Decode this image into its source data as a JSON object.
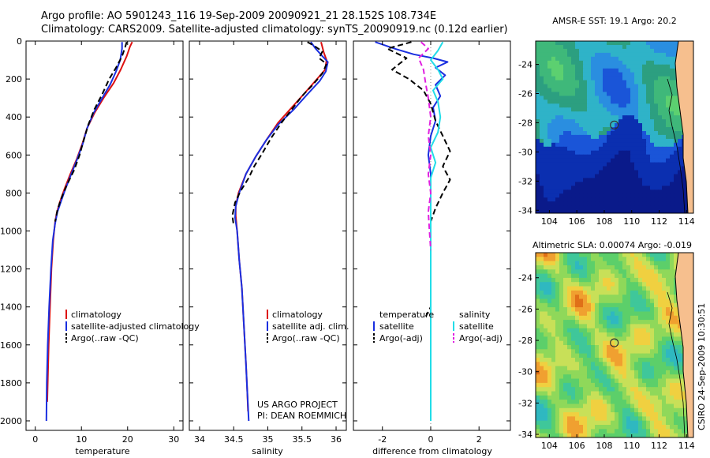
{
  "title": {
    "line1": "Argo profile: AO 5901243_116 19-Sep-2009 20090921_21 28.152S 108.734E",
    "line2": "Climatology: CARS2009. Satellite-adjusted climatology: synTS_20090919.nc (0.12d earlier)"
  },
  "side_label": "CSIRO 24-Sep-2009 10:30:51",
  "colors": {
    "red": "#dd1111",
    "blue": "#1a2fe0",
    "black": "#000000",
    "cyan": "#22dde8",
    "magenta": "#e020e0",
    "land": "#f6bf8e",
    "marker_dot": "#333333"
  },
  "chart_data": [
    {
      "type": "line",
      "panel": "temperature",
      "xlabel": "temperature",
      "xlim": [
        -2,
        32
      ],
      "ylim": [
        2050,
        0
      ],
      "xticks": [
        "0",
        "10",
        "20",
        "30"
      ],
      "yticks": [
        "0",
        "200",
        "400",
        "600",
        "800",
        "1000",
        "1200",
        "1400",
        "1600",
        "1800",
        "2000"
      ],
      "legend": [
        "climatology",
        "satellite-adjusted climatology",
        "Argo(..raw -QC)"
      ],
      "series": [
        {
          "name": "climatology",
          "color": "red",
          "style": "solid",
          "points": [
            [
              21.0,
              5
            ],
            [
              20.5,
              30
            ],
            [
              19.8,
              80
            ],
            [
              18.5,
              150
            ],
            [
              17.0,
              220
            ],
            [
              14.8,
              300
            ],
            [
              12.8,
              380
            ],
            [
              11.2,
              460
            ],
            [
              10.2,
              540
            ],
            [
              9.0,
              620
            ],
            [
              7.6,
              700
            ],
            [
              6.3,
              780
            ],
            [
              5.3,
              850
            ],
            [
              4.7,
              900
            ],
            [
              4.3,
              950
            ],
            [
              3.9,
              1050
            ],
            [
              3.5,
              1200
            ],
            [
              3.2,
              1400
            ],
            [
              2.9,
              1600
            ],
            [
              2.7,
              1800
            ],
            [
              2.6,
              1900
            ]
          ]
        },
        {
          "name": "satellite-adjusted climatology",
          "color": "blue",
          "style": "solid",
          "points": [
            [
              18.8,
              5
            ],
            [
              18.8,
              40
            ],
            [
              18.4,
              100
            ],
            [
              17.5,
              160
            ],
            [
              16.2,
              230
            ],
            [
              14.5,
              300
            ],
            [
              12.6,
              380
            ],
            [
              11.2,
              460
            ],
            [
              10.3,
              540
            ],
            [
              9.1,
              620
            ],
            [
              7.8,
              700
            ],
            [
              6.5,
              780
            ],
            [
              5.5,
              850
            ],
            [
              4.8,
              900
            ],
            [
              4.3,
              960
            ],
            [
              3.8,
              1050
            ],
            [
              3.4,
              1200
            ],
            [
              3.0,
              1400
            ],
            [
              2.7,
              1600
            ],
            [
              2.5,
              1800
            ],
            [
              2.4,
              2000
            ]
          ]
        },
        {
          "name": "Argo(..raw -QC)",
          "color": "black",
          "style": "dash",
          "points": [
            [
              19.8,
              5
            ],
            [
              19.5,
              30
            ],
            [
              18.8,
              80
            ],
            [
              17.5,
              140
            ],
            [
              16.0,
              200
            ],
            [
              14.5,
              280
            ],
            [
              12.8,
              360
            ],
            [
              11.5,
              440
            ],
            [
              10.5,
              520
            ],
            [
              9.6,
              600
            ],
            [
              8.4,
              680
            ],
            [
              6.8,
              760
            ],
            [
              5.6,
              830
            ],
            [
              4.8,
              890
            ],
            [
              4.3,
              950
            ]
          ]
        }
      ]
    },
    {
      "type": "line",
      "panel": "salinity",
      "xlabel": "salinity",
      "xlim": [
        33.85,
        36.15
      ],
      "ylim": [
        2050,
        0
      ],
      "xticks": [
        "34",
        "34.5",
        "35",
        "35.5",
        "36"
      ],
      "legend": [
        "climatology",
        "satellite adj. clim.",
        "Argo(..raw -QC)"
      ],
      "annotation": [
        "US ARGO PROJECT",
        "PI: DEAN ROEMMICH"
      ],
      "series": [
        {
          "name": "climatology",
          "color": "red",
          "style": "solid",
          "points": [
            [
              35.78,
              5
            ],
            [
              35.82,
              60
            ],
            [
              35.86,
              100
            ],
            [
              35.84,
              150
            ],
            [
              35.72,
              200
            ],
            [
              35.55,
              270
            ],
            [
              35.35,
              350
            ],
            [
              35.15,
              430
            ],
            [
              34.98,
              520
            ],
            [
              34.82,
              610
            ],
            [
              34.68,
              700
            ],
            [
              34.57,
              800
            ],
            [
              34.53,
              870
            ],
            [
              34.53,
              920
            ],
            [
              34.55,
              1000
            ],
            [
              34.58,
              1150
            ],
            [
              34.62,
              1300
            ],
            [
              34.65,
              1500
            ],
            [
              34.68,
              1700
            ],
            [
              34.7,
              1850
            ],
            [
              34.71,
              1950
            ]
          ]
        },
        {
          "name": "satellite adj. clim.",
          "color": "blue",
          "style": "solid",
          "points": [
            [
              35.63,
              5
            ],
            [
              35.7,
              40
            ],
            [
              35.8,
              80
            ],
            [
              35.88,
              110
            ],
            [
              35.85,
              160
            ],
            [
              35.76,
              210
            ],
            [
              35.58,
              280
            ],
            [
              35.38,
              360
            ],
            [
              35.15,
              440
            ],
            [
              34.98,
              520
            ],
            [
              34.82,
              610
            ],
            [
              34.68,
              700
            ],
            [
              34.58,
              800
            ],
            [
              34.53,
              870
            ],
            [
              34.52,
              930
            ],
            [
              34.55,
              1000
            ],
            [
              34.58,
              1150
            ],
            [
              34.62,
              1300
            ],
            [
              34.65,
              1500
            ],
            [
              34.68,
              1700
            ],
            [
              34.7,
              1850
            ],
            [
              34.72,
              2000
            ]
          ]
        },
        {
          "name": "Argo(..raw -QC)",
          "color": "black",
          "style": "dash",
          "points": [
            [
              35.58,
              5
            ],
            [
              35.68,
              25
            ],
            [
              35.8,
              55
            ],
            [
              35.75,
              90
            ],
            [
              35.86,
              120
            ],
            [
              35.8,
              170
            ],
            [
              35.66,
              230
            ],
            [
              35.5,
              290
            ],
            [
              35.35,
              360
            ],
            [
              35.2,
              430
            ],
            [
              35.05,
              510
            ],
            [
              34.92,
              590
            ],
            [
              34.8,
              660
            ],
            [
              34.72,
              720
            ],
            [
              34.6,
              790
            ],
            [
              34.52,
              850
            ],
            [
              34.48,
              920
            ],
            [
              34.5,
              970
            ]
          ]
        }
      ]
    },
    {
      "type": "line",
      "panel": "difference",
      "xlabel": "difference from climatology",
      "xlim": [
        -3.2,
        3.3
      ],
      "ylim": [
        2050,
        0
      ],
      "xticks": [
        "-2",
        "0",
        "2"
      ],
      "legend": {
        "left_title": "temperature",
        "right_title": "salinity",
        "left": [
          "satellite",
          "Argo(-adj)"
        ],
        "right": [
          "satellite",
          "Argo(-adj)"
        ]
      },
      "series": [
        {
          "name": "satellite (temperature)",
          "color": "blue",
          "style": "solid",
          "points": [
            [
              -2.3,
              5
            ],
            [
              -1.5,
              40
            ],
            [
              -0.7,
              70
            ],
            [
              0.1,
              90
            ],
            [
              0.7,
              110
            ],
            [
              0.2,
              140
            ],
            [
              0.6,
              180
            ],
            [
              0.2,
              230
            ],
            [
              0.4,
              290
            ],
            [
              0.1,
              350
            ],
            [
              0.2,
              420
            ],
            [
              0.0,
              500
            ],
            [
              -0.1,
              600
            ],
            [
              0.0,
              700
            ],
            [
              0.0,
              800
            ],
            [
              0.0,
              1000
            ],
            [
              0.0,
              1400
            ],
            [
              0.0,
              1800
            ],
            [
              0.0,
              2000
            ]
          ]
        },
        {
          "name": "Argo(-adj) (temperature)",
          "color": "black",
          "style": "dash",
          "points": [
            [
              -0.8,
              5
            ],
            [
              -1.8,
              40
            ],
            [
              -1.0,
              90
            ],
            [
              -1.6,
              150
            ],
            [
              -0.9,
              200
            ],
            [
              -0.3,
              260
            ],
            [
              0.0,
              330
            ],
            [
              0.2,
              420
            ],
            [
              0.5,
              500
            ],
            [
              0.8,
              580
            ],
            [
              0.5,
              660
            ],
            [
              0.8,
              730
            ],
            [
              0.5,
              800
            ],
            [
              0.2,
              880
            ],
            [
              0.0,
              950
            ],
            [
              0.0,
              1100
            ],
            [
              0.0,
              1300
            ],
            [
              0.0,
              1400
            ],
            [
              -0.2,
              1450
            ]
          ]
        },
        {
          "name": "satellite (salinity)",
          "color": "cyan",
          "style": "solid",
          "points": [
            [
              0.5,
              5
            ],
            [
              0.3,
              50
            ],
            [
              0.0,
              100
            ],
            [
              0.3,
              150
            ],
            [
              0.5,
              200
            ],
            [
              0.1,
              260
            ],
            [
              0.3,
              320
            ],
            [
              0.4,
              400
            ],
            [
              0.3,
              480
            ],
            [
              0.0,
              560
            ],
            [
              0.2,
              640
            ],
            [
              0.0,
              720
            ],
            [
              0.0,
              800
            ],
            [
              0.0,
              1000
            ],
            [
              0.0,
              1400
            ],
            [
              0.0,
              1800
            ],
            [
              0.0,
              2000
            ]
          ]
        },
        {
          "name": "Argo(-adj) (salinity)",
          "color": "magenta",
          "style": "dash",
          "points": [
            [
              -0.4,
              5
            ],
            [
              -0.1,
              40
            ],
            [
              -0.5,
              90
            ],
            [
              -0.3,
              150
            ],
            [
              -0.2,
              230
            ],
            [
              -0.1,
              300
            ],
            [
              0.0,
              400
            ],
            [
              -0.1,
              500
            ],
            [
              0.0,
              600
            ],
            [
              -0.1,
              700
            ],
            [
              0.0,
              800
            ],
            [
              -0.1,
              900
            ],
            [
              -0.05,
              1000
            ],
            [
              0.0,
              1100
            ]
          ]
        }
      ]
    },
    {
      "type": "heatmap",
      "panel": "sst_map",
      "title": "AMSR-E SST: 19.1 Argo: 20.2",
      "xlim": [
        103,
        114.5
      ],
      "ylim": [
        -34.2,
        -22.4
      ],
      "xticks": [
        "104",
        "106",
        "108",
        "110",
        "112",
        "114"
      ],
      "yticks": [
        "-24",
        "-26",
        "-28",
        "-30",
        "-32",
        "-34"
      ],
      "marker": {
        "lon": 108.734,
        "lat": -28.152
      }
    },
    {
      "type": "heatmap",
      "panel": "sla_map",
      "title": "Altimetric SLA: 0.00074 Argo: -0.019",
      "xlim": [
        103,
        114.5
      ],
      "ylim": [
        -34.2,
        -22.4
      ],
      "xticks": [
        "104",
        "106",
        "108",
        "110",
        "112",
        "114"
      ],
      "yticks": [
        "-24",
        "-26",
        "-28",
        "-30",
        "-32",
        "-34"
      ],
      "marker": {
        "lon": 108.734,
        "lat": -28.152
      }
    }
  ]
}
